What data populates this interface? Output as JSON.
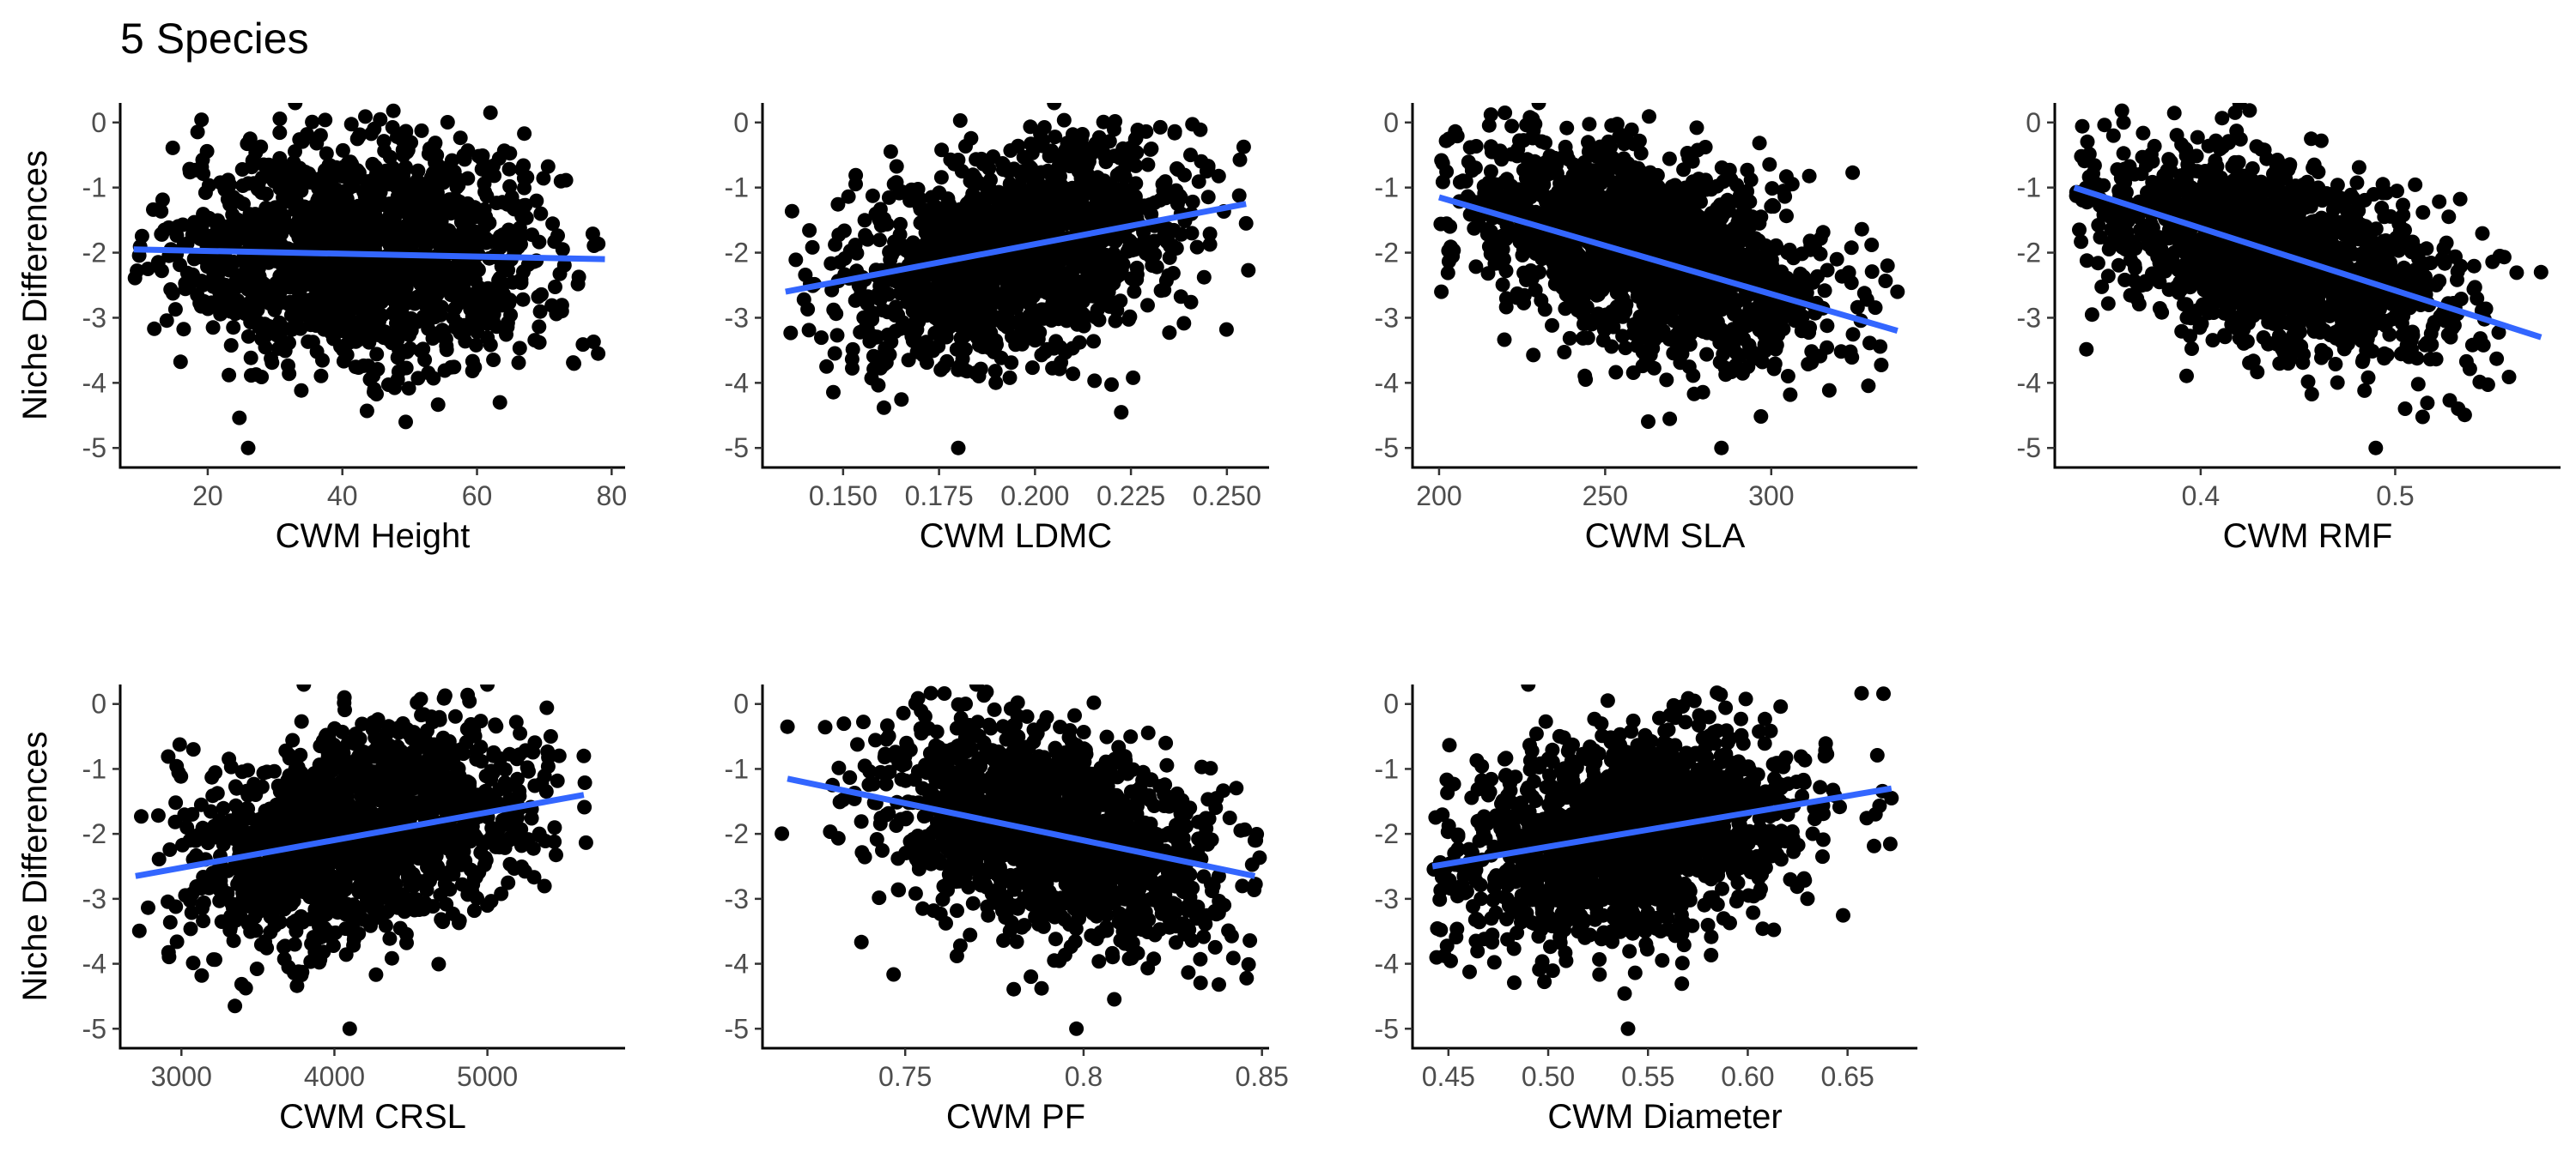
{
  "title": "5 Species",
  "colors": {
    "points": "#000000",
    "fit_line": "#3366FF",
    "axis": "#000000",
    "tick_label": "#4d4d4d"
  },
  "chart_data": [
    {
      "type": "scatter",
      "xlabel": "CWM Height",
      "ylabel": "Niche Differences",
      "xlim": [
        7,
        82
      ],
      "ylim": [
        -5.3,
        0.3
      ],
      "x_ticks": [
        20,
        40,
        60,
        80
      ],
      "y_ticks": [
        0,
        -1,
        -2,
        -3,
        -4,
        -5
      ],
      "fit": [
        [
          9,
          -1.95
        ],
        [
          79,
          -2.1
        ]
      ],
      "cloud": {
        "x_center": 43,
        "x_sd": 14,
        "y_center": -2.0,
        "y_sd": 0.85,
        "r": 0.0,
        "n": 1500,
        "x_range": [
          9,
          79
        ],
        "y_range": [
          -4.6,
          0.2
        ]
      },
      "outliers": [
        [
          33,
          0.3
        ],
        [
          26,
          -5.0
        ],
        [
          62,
          0.15
        ],
        [
          78,
          -3.55
        ]
      ]
    },
    {
      "type": "scatter",
      "xlabel": "CWM LDMC",
      "ylabel": "",
      "xlim": [
        0.129,
        0.261
      ],
      "ylim": [
        -5.3,
        0.3
      ],
      "x_ticks": [
        0.15,
        0.175,
        0.2,
        0.225,
        0.25
      ],
      "x_tick_labels": [
        "0.150",
        "0.175",
        "0.200",
        "0.225",
        "0.250"
      ],
      "y_ticks": [
        0,
        -1,
        -2,
        -3,
        -4,
        -5
      ],
      "fit": [
        [
          0.135,
          -2.6
        ],
        [
          0.255,
          -1.25
        ]
      ],
      "cloud": {
        "x_center": 0.195,
        "x_sd": 0.022,
        "y_center": -2.0,
        "y_sd": 0.85,
        "r": 0.35,
        "n": 1500,
        "x_range": [
          0.134,
          0.256
        ],
        "y_range": [
          -4.6,
          0.2
        ]
      },
      "outliers": [
        [
          0.18,
          -5.0
        ],
        [
          0.205,
          0.3
        ],
        [
          0.255,
          -1.55
        ]
      ]
    },
    {
      "type": "scatter",
      "xlabel": "CWM SLA",
      "ylabel": "",
      "xlim": [
        192,
        344
      ],
      "ylim": [
        -5.3,
        0.3
      ],
      "x_ticks": [
        200,
        250,
        300
      ],
      "y_ticks": [
        0,
        -1,
        -2,
        -3,
        -4,
        -5
      ],
      "fit": [
        [
          200,
          -1.15
        ],
        [
          338,
          -3.2
        ]
      ],
      "cloud": {
        "x_center": 262,
        "x_sd": 28,
        "y_center": -2.0,
        "y_sd": 0.85,
        "r": -0.45,
        "n": 1500,
        "x_range": [
          200,
          338
        ],
        "y_range": [
          -4.6,
          0.2
        ]
      },
      "outliers": [
        [
          285,
          -5.0
        ],
        [
          338,
          -2.6
        ],
        [
          335,
          -2.2
        ],
        [
          230,
          0.3
        ]
      ]
    },
    {
      "type": "scatter",
      "xlabel": "CWM RMF",
      "ylabel": "",
      "xlim": [
        0.325,
        0.585
      ],
      "ylim": [
        -5.3,
        0.3
      ],
      "x_ticks": [
        0.4,
        0.5
      ],
      "y_ticks": [
        0,
        -1,
        -2,
        -3,
        -4,
        -5
      ],
      "fit": [
        [
          0.335,
          -1.0
        ],
        [
          0.575,
          -3.3
        ]
      ],
      "cloud": {
        "x_center": 0.435,
        "x_sd": 0.048,
        "y_center": -2.0,
        "y_sd": 0.85,
        "r": -0.5,
        "n": 1500,
        "x_range": [
          0.335,
          0.575
        ],
        "y_range": [
          -4.6,
          0.2
        ]
      },
      "outliers": [
        [
          0.49,
          -5.0
        ],
        [
          0.575,
          -2.3
        ],
        [
          0.42,
          0.3
        ]
      ]
    },
    {
      "type": "scatter",
      "xlabel": "CWM CRSL",
      "ylabel": "Niche Differences",
      "xlim": [
        2600,
        5900
      ],
      "ylim": [
        -5.3,
        0.3
      ],
      "x_ticks": [
        3000,
        4000,
        5000
      ],
      "y_ticks": [
        0,
        -1,
        -2,
        -3,
        -4,
        -5
      ],
      "fit": [
        [
          2700,
          -2.65
        ],
        [
          5630,
          -1.4
        ]
      ],
      "cloud": {
        "x_center": 4150,
        "x_sd": 550,
        "y_center": -2.0,
        "y_sd": 0.85,
        "r": 0.35,
        "n": 1500,
        "x_range": [
          2700,
          5650
        ],
        "y_range": [
          -4.6,
          0.2
        ]
      },
      "outliers": [
        [
          4100,
          -5.0
        ],
        [
          3350,
          -4.65
        ],
        [
          5000,
          0.3
        ],
        [
          3800,
          0.3
        ],
        [
          5630,
          -0.8
        ]
      ]
    },
    {
      "type": "scatter",
      "xlabel": "CWM PF",
      "ylabel": "",
      "xlim": [
        0.71,
        0.852
      ],
      "ylim": [
        -5.3,
        0.3
      ],
      "x_ticks": [
        0.75,
        0.8,
        0.85
      ],
      "y_ticks": [
        0,
        -1,
        -2,
        -3,
        -4,
        -5
      ],
      "fit": [
        [
          0.717,
          -1.15
        ],
        [
          0.848,
          -2.65
        ]
      ],
      "cloud": {
        "x_center": 0.79,
        "x_sd": 0.024,
        "y_center": -2.0,
        "y_sd": 0.85,
        "r": -0.4,
        "n": 1500,
        "x_range": [
          0.715,
          0.85
        ],
        "y_range": [
          -4.6,
          0.2
        ]
      },
      "outliers": [
        [
          0.798,
          -5.0
        ],
        [
          0.717,
          -0.35
        ],
        [
          0.77,
          0.3
        ],
        [
          0.848,
          -2.1
        ]
      ]
    },
    {
      "type": "scatter",
      "xlabel": "CWM Diameter",
      "ylabel": "",
      "xlim": [
        0.432,
        0.685
      ],
      "ylim": [
        -5.3,
        0.3
      ],
      "x_ticks": [
        0.45,
        0.5,
        0.55,
        0.6,
        0.65
      ],
      "x_tick_labels": [
        "0.45",
        "0.50",
        "0.55",
        "0.60",
        "0.65"
      ],
      "y_ticks": [
        0,
        -1,
        -2,
        -3,
        -4,
        -5
      ],
      "fit": [
        [
          0.442,
          -2.5
        ],
        [
          0.672,
          -1.3
        ]
      ],
      "cloud": {
        "x_center": 0.54,
        "x_sd": 0.045,
        "y_center": -2.0,
        "y_sd": 0.85,
        "r": 0.3,
        "n": 1500,
        "x_range": [
          0.442,
          0.672
        ],
        "y_range": [
          -4.6,
          0.2
        ]
      },
      "outliers": [
        [
          0.54,
          -5.0
        ],
        [
          0.672,
          -1.45
        ],
        [
          0.49,
          0.3
        ]
      ]
    }
  ]
}
